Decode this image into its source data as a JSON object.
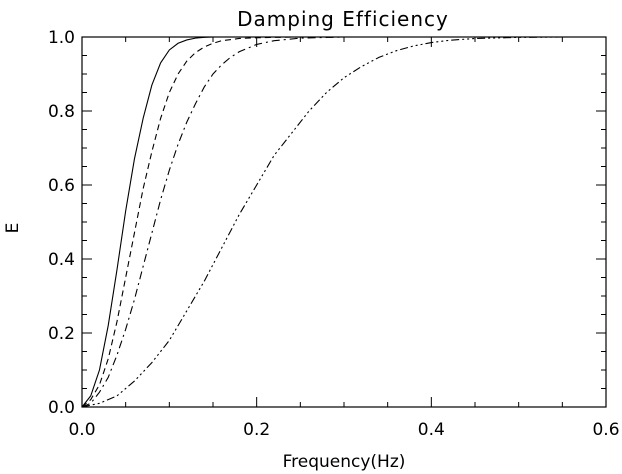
{
  "chart_data": {
    "type": "line",
    "title": "Damping Efficiency",
    "xlabel": "Frequency(Hz)",
    "ylabel": "E",
    "xlim": [
      0.0,
      0.6
    ],
    "ylim": [
      0.0,
      1.0
    ],
    "x_ticks": [
      "0.0",
      "0.2",
      "0.4",
      "0.6"
    ],
    "y_ticks": [
      "0.0",
      "0.2",
      "0.4",
      "0.6",
      "0.8",
      "1.0"
    ],
    "x_tick_values": [
      0.0,
      0.2,
      0.4,
      0.6
    ],
    "y_tick_values": [
      0.0,
      0.2,
      0.4,
      0.6,
      0.8,
      1.0
    ],
    "grid": false,
    "legend": "none",
    "series": [
      {
        "linestyle": "solid",
        "x": [
          0.0,
          0.01,
          0.02,
          0.03,
          0.04,
          0.05,
          0.06,
          0.07,
          0.08,
          0.09,
          0.1,
          0.11,
          0.12,
          0.13,
          0.14,
          0.15,
          0.17,
          0.2,
          0.25,
          0.6
        ],
        "values": [
          0.0,
          0.03,
          0.1,
          0.22,
          0.37,
          0.53,
          0.67,
          0.78,
          0.87,
          0.93,
          0.965,
          0.983,
          0.992,
          0.997,
          0.999,
          1.0,
          1.0,
          1.0,
          1.0,
          1.0
        ]
      },
      {
        "linestyle": "dashed",
        "x": [
          0.0,
          0.01,
          0.02,
          0.03,
          0.04,
          0.05,
          0.06,
          0.07,
          0.08,
          0.09,
          0.1,
          0.11,
          0.12,
          0.13,
          0.14,
          0.15,
          0.16,
          0.18,
          0.2,
          0.22,
          0.25,
          0.3,
          0.6
        ],
        "values": [
          0.0,
          0.02,
          0.06,
          0.13,
          0.23,
          0.35,
          0.47,
          0.59,
          0.69,
          0.78,
          0.85,
          0.9,
          0.935,
          0.958,
          0.973,
          0.983,
          0.99,
          0.996,
          0.998,
          0.999,
          1.0,
          1.0,
          1.0
        ]
      },
      {
        "linestyle": "dash-dot",
        "x": [
          0.0,
          0.01,
          0.02,
          0.03,
          0.04,
          0.05,
          0.06,
          0.07,
          0.08,
          0.09,
          0.1,
          0.11,
          0.12,
          0.13,
          0.14,
          0.15,
          0.16,
          0.17,
          0.18,
          0.2,
          0.22,
          0.25,
          0.3,
          0.6
        ],
        "values": [
          0.0,
          0.01,
          0.04,
          0.08,
          0.14,
          0.21,
          0.29,
          0.38,
          0.47,
          0.56,
          0.64,
          0.71,
          0.77,
          0.82,
          0.865,
          0.9,
          0.925,
          0.945,
          0.96,
          0.98,
          0.99,
          0.997,
          1.0,
          1.0
        ]
      },
      {
        "linestyle": "dash-dot-dot-dot",
        "x": [
          0.0,
          0.02,
          0.04,
          0.06,
          0.08,
          0.1,
          0.12,
          0.14,
          0.16,
          0.18,
          0.2,
          0.22,
          0.24,
          0.26,
          0.28,
          0.3,
          0.32,
          0.34,
          0.36,
          0.38,
          0.4,
          0.42,
          0.45,
          0.5,
          0.55,
          0.6
        ],
        "values": [
          0.0,
          0.01,
          0.03,
          0.07,
          0.12,
          0.18,
          0.26,
          0.34,
          0.43,
          0.52,
          0.6,
          0.68,
          0.74,
          0.8,
          0.85,
          0.89,
          0.92,
          0.945,
          0.963,
          0.976,
          0.985,
          0.991,
          0.996,
          0.999,
          1.0,
          1.0
        ]
      }
    ]
  }
}
